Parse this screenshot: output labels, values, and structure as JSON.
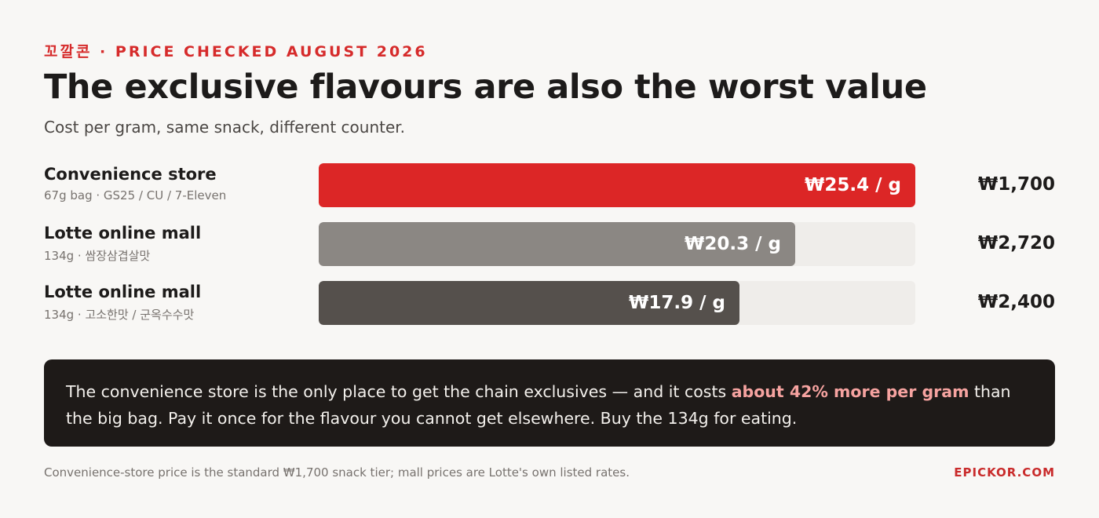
{
  "header": {
    "kicker": "꼬깔콘 · PRICE CHECKED AUGUST 2026",
    "title": "The exclusive flavours are also the worst value",
    "subtitle": "Cost per gram, same snack, different counter."
  },
  "colors": {
    "accent": "#dc2626",
    "highlight": "#f6a3a0",
    "track": "#efedea",
    "callout_bg": "#1e1a18"
  },
  "chart_data": {
    "type": "bar",
    "orientation": "horizontal",
    "title": "The exclusive flavours are also the worst value",
    "subtitle": "Cost per gram, same snack, different counter.",
    "xlim": [
      0,
      25.4
    ],
    "rows": [
      {
        "name": "Convenience store",
        "detail": "67g bag · GS25 / CU / 7-Eleven",
        "value": 25.4,
        "value_label": "₩25.4 / g",
        "price_label": "₩1,700",
        "color": "#dc2626"
      },
      {
        "name": "Lotte online mall",
        "detail": "134g · 쌈장삼겹살맛",
        "value": 20.3,
        "value_label": "₩20.3 / g",
        "price_label": "₩2,720",
        "color": "#8b8783"
      },
      {
        "name": "Lotte online mall",
        "detail": "134g · 고소한맛 / 군옥수수맛",
        "value": 17.9,
        "value_label": "₩17.9 / g",
        "price_label": "₩2,400",
        "color": "#55504c"
      }
    ]
  },
  "callout": {
    "text_before": "The convenience store is the only place to get the chain exclusives — and it costs ",
    "highlight": "about 42% more per gram",
    "text_after": " than the big bag. Pay it once for the flavour you cannot get elsewhere. Buy the 134g for eating."
  },
  "footer": {
    "note": "Convenience-store price is the standard ₩1,700 snack tier; mall prices are Lotte's own listed rates.",
    "brand": "EPICKOR.COM"
  }
}
